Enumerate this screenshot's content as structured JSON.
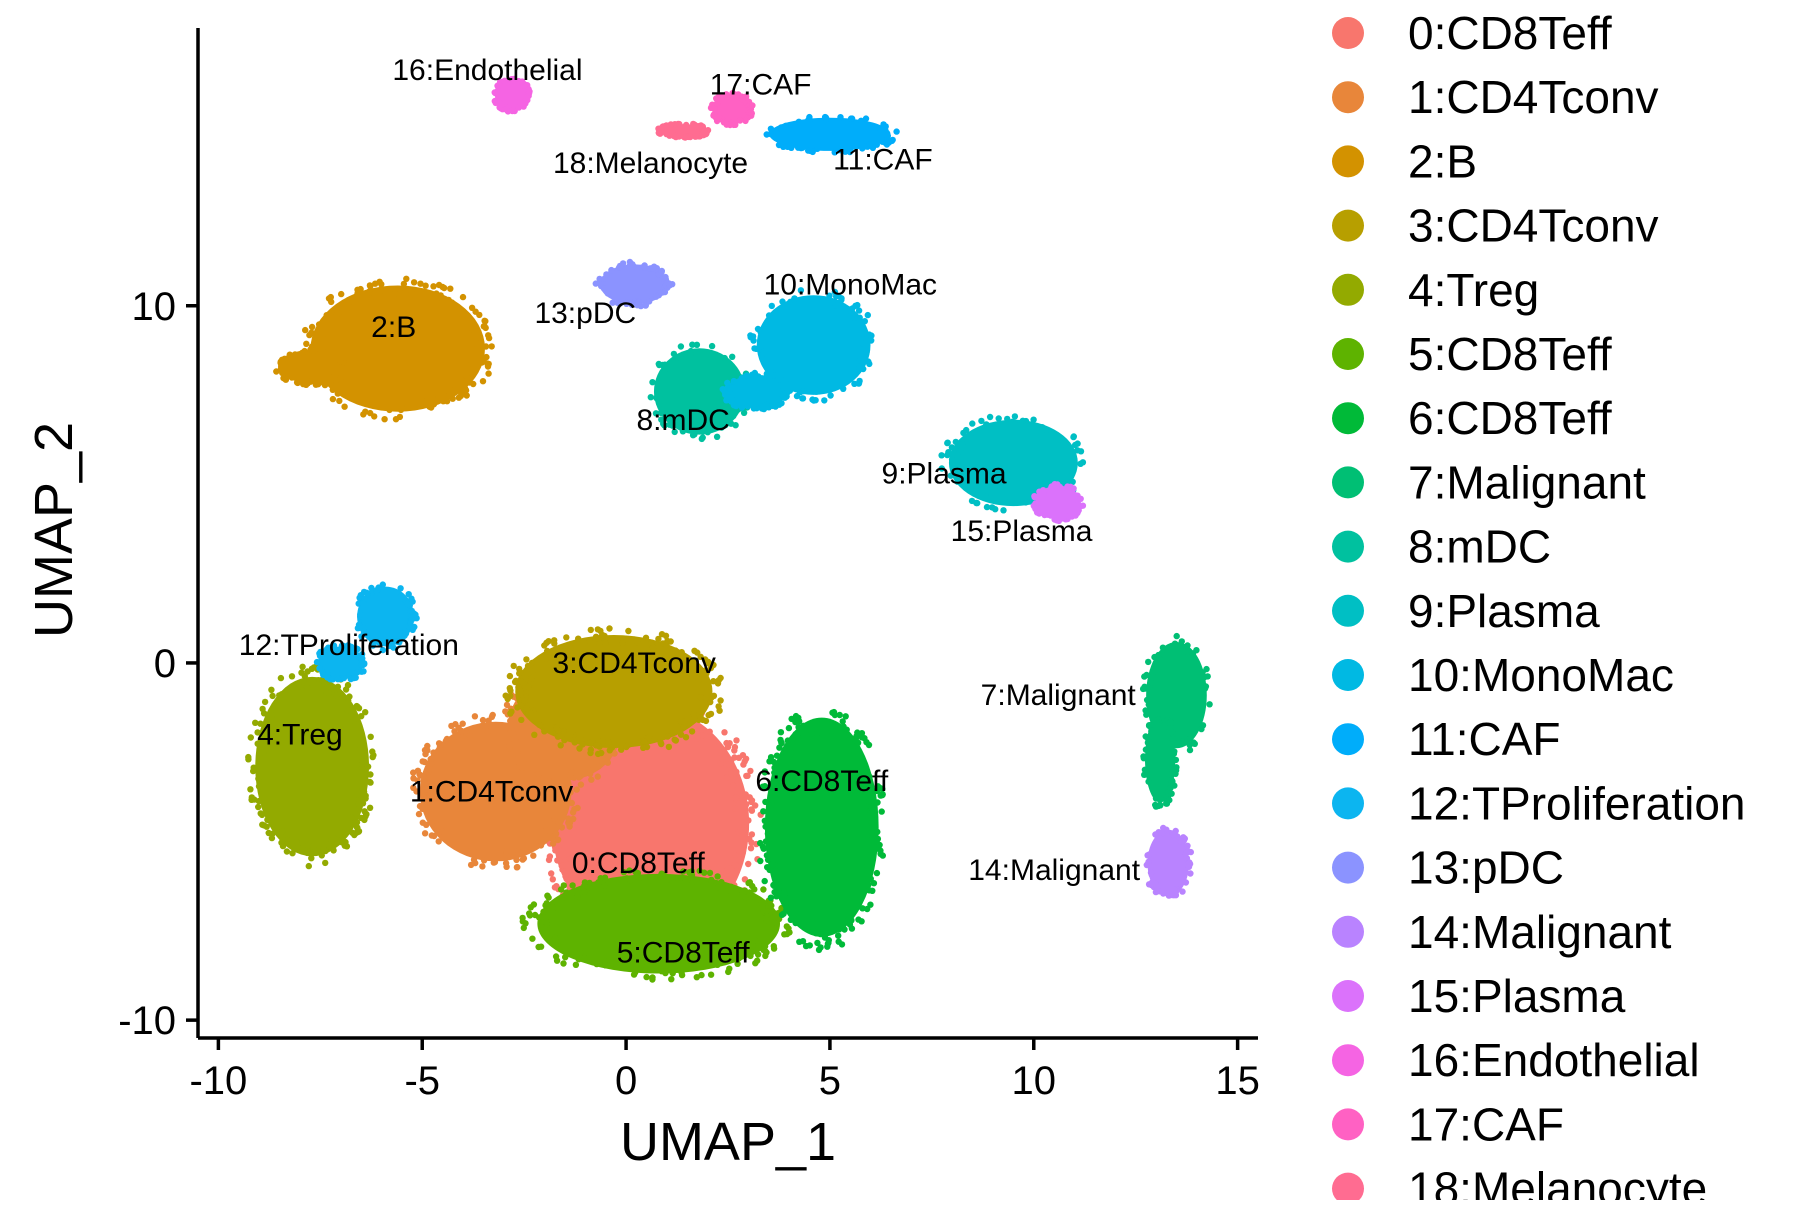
{
  "chart_data": {
    "type": "scatter",
    "title": "",
    "xlabel": "UMAP_1",
    "ylabel": "UMAP_2",
    "xlim": [
      -10.5,
      15.5
    ],
    "ylim": [
      -10.5,
      18
    ],
    "xticks": [
      -10,
      -5,
      0,
      5,
      10,
      15
    ],
    "yticks": [
      -10,
      0,
      10
    ],
    "xtick_labels": [
      "-10",
      "-5",
      "0",
      "5",
      "10",
      "15"
    ],
    "ytick_labels": [
      "-10",
      "0",
      "10"
    ],
    "grid": false,
    "legend_position": "right",
    "series": [
      {
        "name": "0:CD8Teff",
        "color": "#F8766D",
        "label": "0:CD8Teff",
        "label_x": 0.3,
        "label_y": -5.6,
        "blobs": [
          {
            "cx": 0.6,
            "cy": -4.5,
            "rx": 2.6,
            "ry": 3.5
          }
        ]
      },
      {
        "name": "1:CD4Tconv",
        "color": "#E8863A",
        "label": "1:CD4Tconv",
        "label_x": -3.3,
        "label_y": -3.6,
        "blobs": [
          {
            "cx": -3.2,
            "cy": -3.6,
            "rx": 2.0,
            "ry": 2.1
          },
          {
            "cx": -1.5,
            "cy": -1.8,
            "rx": 1.5,
            "ry": 1.6
          }
        ]
      },
      {
        "name": "2:B",
        "color": "#D39200",
        "label": "2:B",
        "label_x": -5.7,
        "label_y": 9.4,
        "blobs": [
          {
            "cx": -5.6,
            "cy": 8.8,
            "rx": 2.3,
            "ry": 1.9
          },
          {
            "cx": -7.7,
            "cy": 8.3,
            "rx": 0.9,
            "ry": 0.5
          }
        ]
      },
      {
        "name": "3:CD4Tconv",
        "color": "#B79F00",
        "label": "3:CD4Tconv",
        "label_x": 0.2,
        "label_y": 0.0,
        "blobs": [
          {
            "cx": -0.3,
            "cy": -0.8,
            "rx": 2.6,
            "ry": 1.7
          }
        ]
      },
      {
        "name": "4:Treg",
        "color": "#93AA00",
        "label": "4:Treg",
        "label_x": -8.0,
        "label_y": -2.0,
        "blobs": [
          {
            "cx": -7.7,
            "cy": -2.9,
            "rx": 1.5,
            "ry": 2.7
          }
        ]
      },
      {
        "name": "5:CD8Teff",
        "color": "#5EB300",
        "label": "5:CD8Teff",
        "label_x": 1.4,
        "label_y": -8.1,
        "blobs": [
          {
            "cx": 0.8,
            "cy": -7.3,
            "rx": 3.2,
            "ry": 1.5
          }
        ]
      },
      {
        "name": "6:CD8Teff",
        "color": "#00BA38",
        "label": "6:CD8Teff",
        "label_x": 4.8,
        "label_y": -3.3,
        "blobs": [
          {
            "cx": 4.8,
            "cy": -4.6,
            "rx": 1.5,
            "ry": 3.3
          }
        ]
      },
      {
        "name": "7:Malignant",
        "color": "#00BF74",
        "label": "7:Malignant",
        "label_x": 10.6,
        "label_y": -0.9,
        "blobs": [
          {
            "cx": 13.5,
            "cy": -0.9,
            "rx": 0.8,
            "ry": 1.6
          },
          {
            "cx": 13.1,
            "cy": -2.7,
            "rx": 0.4,
            "ry": 1.3
          }
        ]
      },
      {
        "name": "8:mDC",
        "color": "#00C19F",
        "label": "8:mDC",
        "label_x": 1.4,
        "label_y": 6.8,
        "blobs": [
          {
            "cx": 1.8,
            "cy": 7.6,
            "rx": 1.2,
            "ry": 1.3
          }
        ]
      },
      {
        "name": "9:Plasma",
        "color": "#00BFC4",
        "label": "9:Plasma",
        "label_x": 7.8,
        "label_y": 5.3,
        "blobs": [
          {
            "cx": 9.5,
            "cy": 5.6,
            "rx": 1.7,
            "ry": 1.3
          }
        ]
      },
      {
        "name": "10:MonoMac",
        "color": "#00B9E3",
        "label": "10:MonoMac",
        "label_x": 5.5,
        "label_y": 10.6,
        "blobs": [
          {
            "cx": 4.6,
            "cy": 8.9,
            "rx": 1.5,
            "ry": 1.5
          },
          {
            "cx": 3.2,
            "cy": 7.6,
            "rx": 0.8,
            "ry": 0.5
          }
        ]
      },
      {
        "name": "11:CAF",
        "color": "#00ADFA",
        "label": "11:CAF",
        "label_x": 6.3,
        "label_y": 14.1,
        "blobs": [
          {
            "cx": 5.0,
            "cy": 14.8,
            "rx": 1.6,
            "ry": 0.5
          }
        ]
      },
      {
        "name": "12:TProliferation",
        "color": "#0CB5F0",
        "label": "12:TProliferation",
        "label_x": -6.8,
        "label_y": 0.5,
        "blobs": [
          {
            "cx": -5.9,
            "cy": 1.3,
            "rx": 0.75,
            "ry": 0.9
          },
          {
            "cx": -7.0,
            "cy": 0.0,
            "rx": 0.6,
            "ry": 0.5
          }
        ]
      },
      {
        "name": "13:pDC",
        "color": "#8B93FF",
        "label": "13:pDC",
        "label_x": -1.0,
        "label_y": 9.8,
        "blobs": [
          {
            "cx": 0.2,
            "cy": 10.6,
            "rx": 0.9,
            "ry": 0.6
          }
        ]
      },
      {
        "name": "14:Malignant",
        "color": "#B983FF",
        "label": "14:Malignant",
        "label_x": 10.5,
        "label_y": -5.8,
        "blobs": [
          {
            "cx": 13.3,
            "cy": -5.6,
            "rx": 0.55,
            "ry": 1.0
          }
        ]
      },
      {
        "name": "15:Plasma",
        "color": "#DB72FB",
        "label": "15:Plasma",
        "label_x": 9.7,
        "label_y": 3.7,
        "blobs": [
          {
            "cx": 10.6,
            "cy": 4.5,
            "rx": 0.6,
            "ry": 0.5
          }
        ]
      },
      {
        "name": "16:Endothelial",
        "color": "#F564E3",
        "label": "16:Endothelial",
        "label_x": -3.4,
        "label_y": 16.6,
        "blobs": [
          {
            "cx": -2.8,
            "cy": 15.9,
            "rx": 0.45,
            "ry": 0.45
          }
        ]
      },
      {
        "name": "17:CAF",
        "color": "#FF61C3",
        "label": "17:CAF",
        "label_x": 3.3,
        "label_y": 16.2,
        "blobs": [
          {
            "cx": 2.6,
            "cy": 15.5,
            "rx": 0.5,
            "ry": 0.45
          }
        ]
      },
      {
        "name": "18:Melanocyte",
        "color": "#FF6C91",
        "label": "18:Melanocyte",
        "label_x": 0.6,
        "label_y": 14.0,
        "blobs": [
          {
            "cx": 1.4,
            "cy": 14.9,
            "rx": 0.6,
            "ry": 0.2
          }
        ]
      }
    ]
  }
}
